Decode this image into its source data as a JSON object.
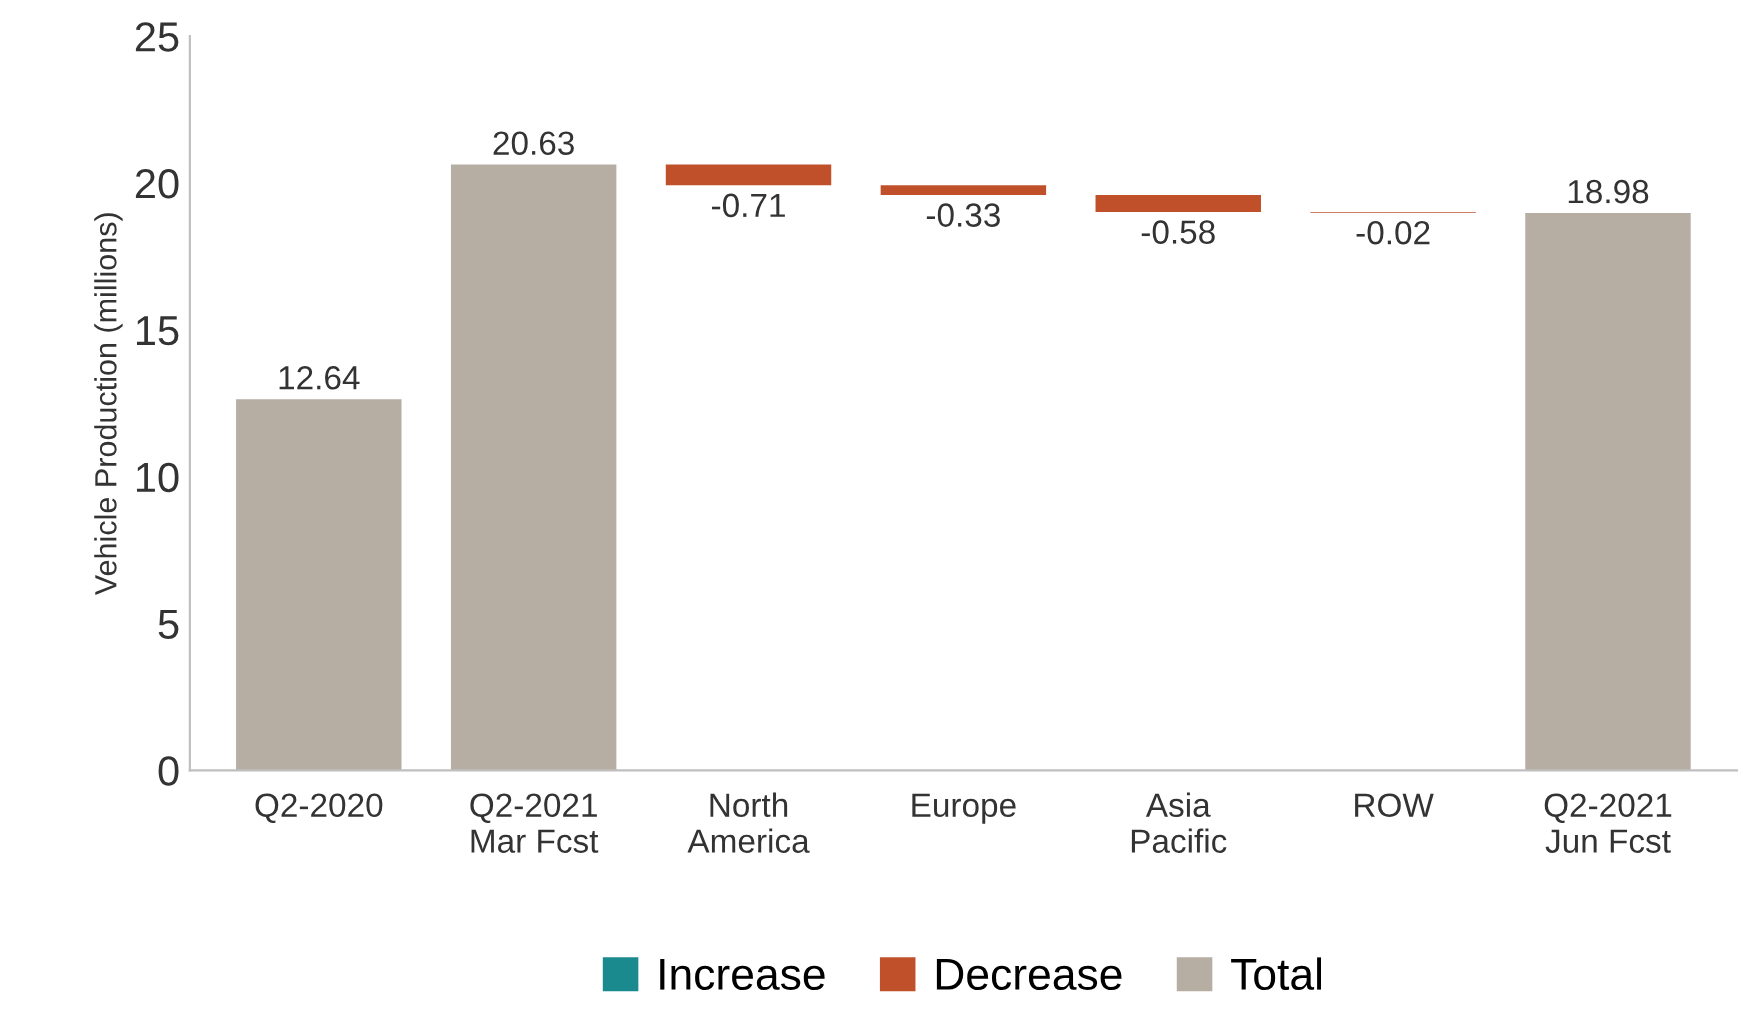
{
  "chart_data": {
    "type": "bar",
    "ylabel": "Vehicle Production (millions)",
    "categories": [
      "Q2-2020",
      "Q2-2021\nMar Fcst",
      "North\nAmerica",
      "Europe",
      "Asia\nPacific",
      "ROW",
      "Q2-2021\nJun Fcst"
    ],
    "series": [
      {
        "name": "Increase",
        "color": "#1a8a8f",
        "values": [
          null,
          null,
          null,
          null,
          null,
          null,
          null
        ]
      },
      {
        "name": "Decrease",
        "color": "#c0502a",
        "base": [
          null,
          null,
          20.63,
          19.92,
          19.59,
          19.01,
          null
        ],
        "values": [
          null,
          null,
          -0.71,
          -0.33,
          -0.58,
          -0.02,
          null
        ]
      },
      {
        "name": "Total",
        "color": "#b6ada3",
        "values": [
          12.64,
          20.63,
          null,
          null,
          null,
          null,
          18.98
        ]
      }
    ],
    "ylim": [
      0,
      25
    ],
    "yticks": [
      0,
      5,
      10,
      15,
      20,
      25
    ],
    "grid": false,
    "legend": "bottom",
    "data_labels": true
  }
}
